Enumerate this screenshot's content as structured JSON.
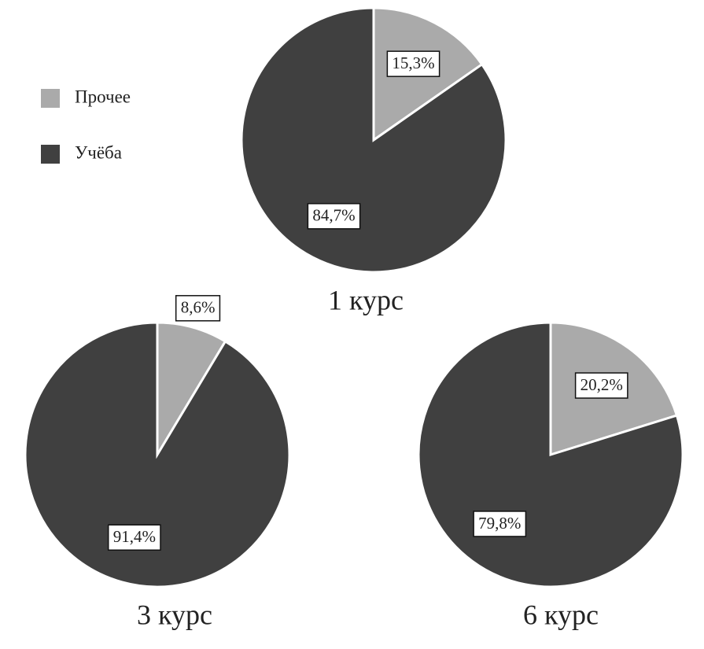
{
  "chart_data": [
    {
      "type": "pie",
      "title": "1 курс",
      "categories": [
        "Прочее",
        "Учёба"
      ],
      "values": [
        15.3,
        84.7
      ],
      "value_labels": [
        "15,3%",
        "84,7%"
      ],
      "colors": [
        "#aaaaaa",
        "#404040"
      ],
      "legend": "top-left"
    },
    {
      "type": "pie",
      "title": "3 курс",
      "categories": [
        "Прочее",
        "Учёба"
      ],
      "values": [
        8.6,
        91.4
      ],
      "value_labels": [
        "8,6%",
        "91,4%"
      ],
      "colors": [
        "#aaaaaa",
        "#404040"
      ]
    },
    {
      "type": "pie",
      "title": "6 курс",
      "categories": [
        "Прочее",
        "Учёба"
      ],
      "values": [
        20.2,
        79.8
      ],
      "value_labels": [
        "20,2%",
        "79,8%"
      ],
      "colors": [
        "#aaaaaa",
        "#404040"
      ]
    }
  ]
}
